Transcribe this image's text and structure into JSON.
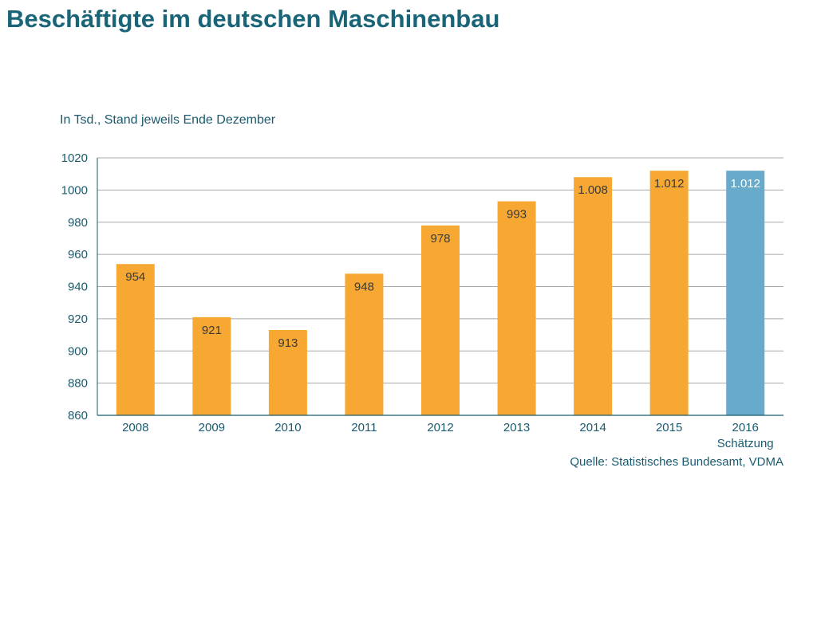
{
  "title": "Beschäftigte im deutschen Maschinenbau",
  "chart_data": {
    "type": "bar",
    "subtitle": "In Tsd., Stand jeweils Ende Dezember",
    "categories": [
      "2008",
      "2009",
      "2010",
      "2011",
      "2012",
      "2013",
      "2014",
      "2015",
      "2016"
    ],
    "values": [
      954,
      921,
      913,
      948,
      978,
      993,
      1008,
      1012,
      1012
    ],
    "data_labels": [
      "954",
      "921",
      "913",
      "948",
      "978",
      "993",
      "1.008",
      "1.012",
      "1.012"
    ],
    "category_notes": [
      "",
      "",
      "",
      "",
      "",
      "",
      "",
      "",
      "Schätzung"
    ],
    "ylim": [
      860,
      1020
    ],
    "yticks": [
      860,
      880,
      900,
      920,
      940,
      960,
      980,
      1000,
      1020
    ],
    "grid": true,
    "legend": "none",
    "colors": {
      "bar": "#f7a833",
      "estimate_bar": "#68aac9",
      "label": "#3a3a3a",
      "estimate_label": "#ffffff",
      "axis_text": "#1a5a6e",
      "grid": "#a8a8a8",
      "axis": "#1a5a6e"
    },
    "estimate_index": 8,
    "source": "Quelle: Statistisches Bundesamt, VDMA"
  }
}
